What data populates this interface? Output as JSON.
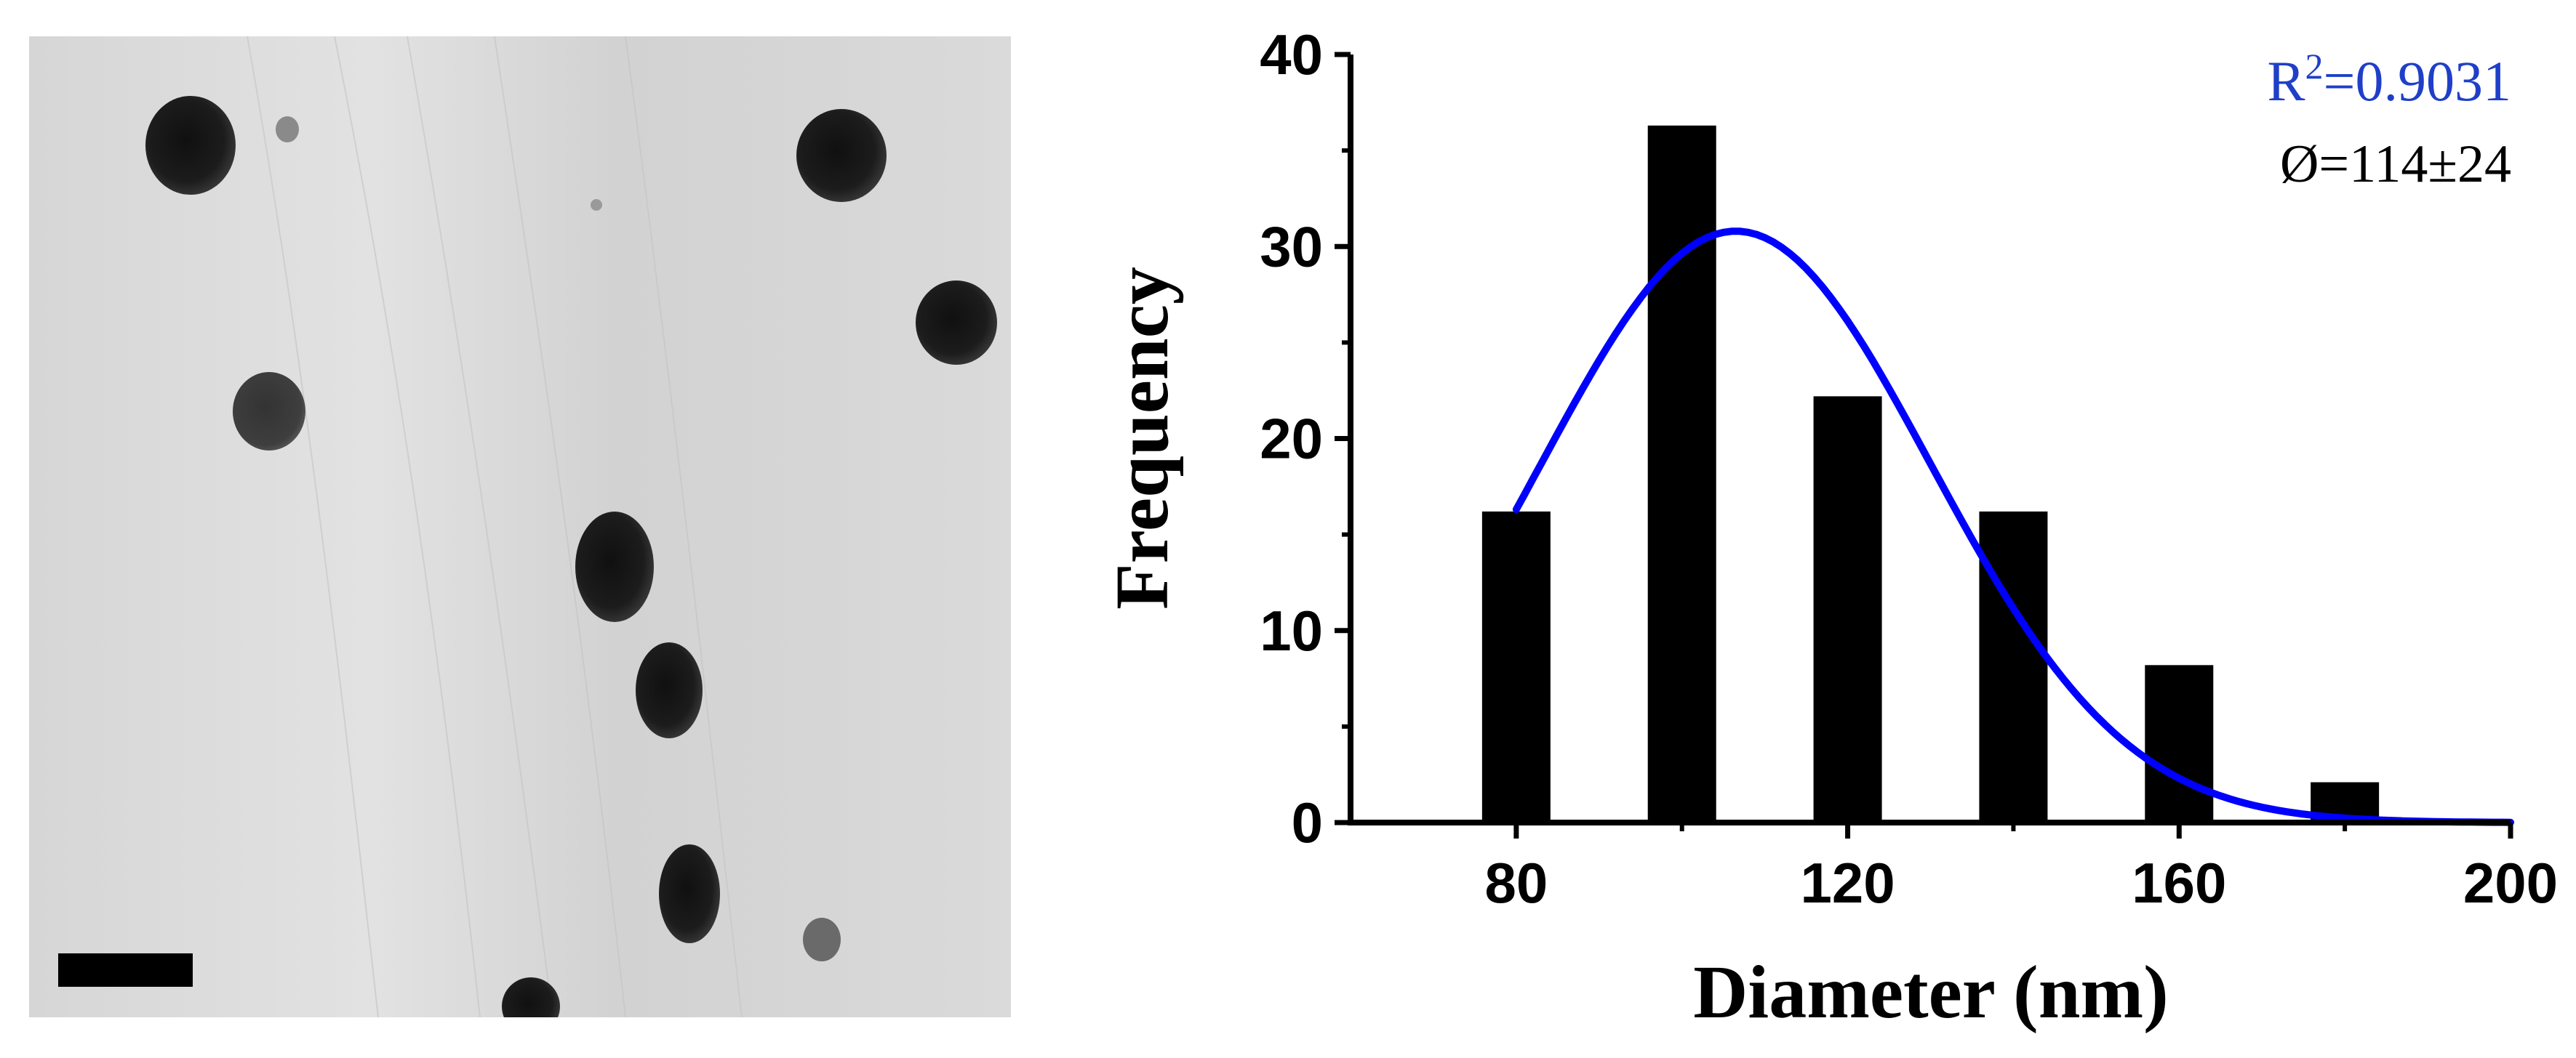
{
  "figure": {
    "left_panel": {
      "kind": "TEM micrograph",
      "scale_bar_color": "#000000"
    }
  },
  "chart_data": {
    "type": "bar",
    "xlabel": "Diameter (nm)",
    "ylabel": "Frequency",
    "x": [
      80,
      100,
      120,
      140,
      160,
      180
    ],
    "values": [
      16.2,
      36.3,
      22.2,
      16.2,
      8.2,
      2.1
    ],
    "xlim": [
      60,
      200
    ],
    "ylim": [
      0,
      40
    ],
    "xticks": [
      80,
      120,
      160,
      200
    ],
    "yticks": [
      0,
      10,
      20,
      30,
      40
    ],
    "bar_color": "#000000",
    "fit": {
      "type": "gaussian",
      "color": "#0000ff",
      "amplitude": 30.8,
      "center": 106.5,
      "sigma": 23.5,
      "x_range": [
        80,
        200
      ]
    },
    "annotations": {
      "r2_label": "R",
      "r2_sup": "2",
      "r2_value": "=0.9031",
      "r2_color": "#1f3fc8",
      "diameter_text": "Ø=114±24",
      "diameter_color": "#000000"
    }
  }
}
